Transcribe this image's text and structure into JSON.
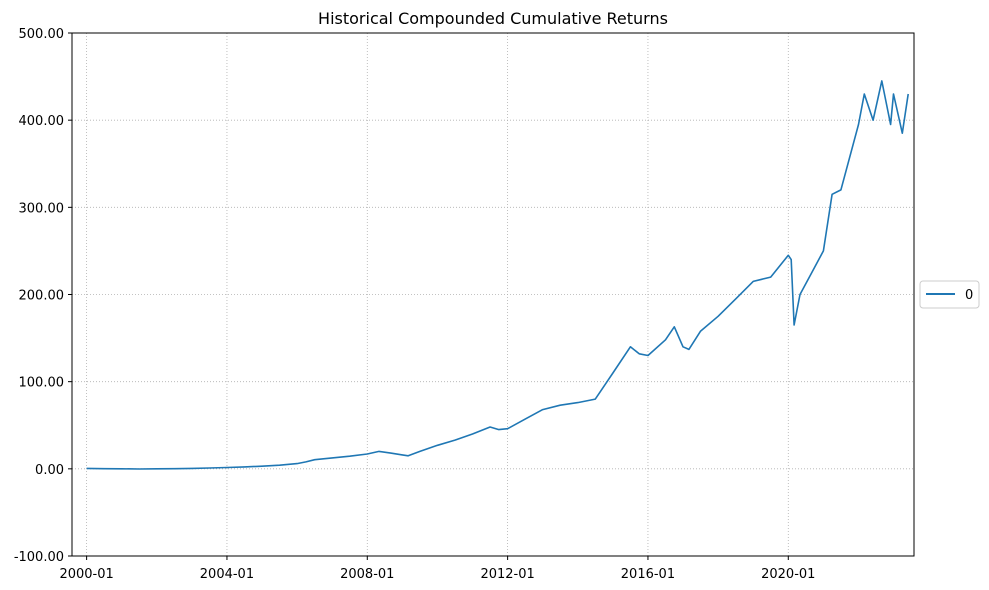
{
  "chart_data": {
    "type": "line",
    "title": "Historical Compounded Cumulative Returns",
    "xlabel": "",
    "ylabel": "",
    "x_axis_type": "date",
    "xlim": [
      "1999-08",
      "2023-08"
    ],
    "ylim": [
      -100,
      500
    ],
    "x_ticks": [
      "2000-01",
      "2004-01",
      "2008-01",
      "2012-01",
      "2016-01",
      "2020-01"
    ],
    "y_ticks": [
      "-100.00",
      "0.00",
      "100.00",
      "200.00",
      "300.00",
      "400.00",
      "500.00"
    ],
    "grid": true,
    "grid_style": "dotted",
    "legend_position": "center-right outside",
    "series": [
      {
        "name": "0",
        "color": "#1f77b4",
        "points": [
          [
            "2000-01",
            0.5
          ],
          [
            "2000-07",
            0.1
          ],
          [
            "2001-01",
            0.0
          ],
          [
            "2001-07",
            -0.2
          ],
          [
            "2002-01",
            0.0
          ],
          [
            "2002-07",
            0.2
          ],
          [
            "2003-01",
            0.5
          ],
          [
            "2003-07",
            0.9
          ],
          [
            "2004-01",
            1.5
          ],
          [
            "2004-07",
            2.2
          ],
          [
            "2005-01",
            3.0
          ],
          [
            "2005-07",
            4.2
          ],
          [
            "2006-01",
            6.0
          ],
          [
            "2006-04",
            8.0
          ],
          [
            "2006-07",
            10.5
          ],
          [
            "2006-10",
            11.5
          ],
          [
            "2007-01",
            12.5
          ],
          [
            "2007-07",
            14.5
          ],
          [
            "2008-01",
            17.0
          ],
          [
            "2008-05",
            20.0
          ],
          [
            "2008-09",
            18.0
          ],
          [
            "2009-01",
            16.0
          ],
          [
            "2009-03",
            15.0
          ],
          [
            "2009-07",
            20.0
          ],
          [
            "2010-01",
            27.0
          ],
          [
            "2010-07",
            33.0
          ],
          [
            "2011-01",
            40.0
          ],
          [
            "2011-07",
            48.0
          ],
          [
            "2011-10",
            45.0
          ],
          [
            "2012-01",
            46.0
          ],
          [
            "2012-07",
            57.0
          ],
          [
            "2013-01",
            68.0
          ],
          [
            "2013-07",
            73.0
          ],
          [
            "2014-01",
            76.0
          ],
          [
            "2014-07",
            80.0
          ],
          [
            "2015-01",
            110.0
          ],
          [
            "2015-07",
            140.0
          ],
          [
            "2015-10",
            132.0
          ],
          [
            "2016-01",
            130.0
          ],
          [
            "2016-07",
            148.0
          ],
          [
            "2016-10",
            163.0
          ],
          [
            "2017-01",
            140.0
          ],
          [
            "2017-03",
            137.0
          ],
          [
            "2017-07",
            158.0
          ],
          [
            "2018-01",
            175.0
          ],
          [
            "2018-07",
            195.0
          ],
          [
            "2019-01",
            215.0
          ],
          [
            "2019-07",
            220.0
          ],
          [
            "2020-01",
            245.0
          ],
          [
            "2020-02",
            240.0
          ],
          [
            "2020-03",
            165.0
          ],
          [
            "2020-05",
            200.0
          ],
          [
            "2020-09",
            225.0
          ],
          [
            "2021-01",
            250.0
          ],
          [
            "2021-04",
            315.0
          ],
          [
            "2021-07",
            320.0
          ],
          [
            "2022-01",
            395.0
          ],
          [
            "2022-03",
            430.0
          ],
          [
            "2022-06",
            400.0
          ],
          [
            "2022-09",
            445.0
          ],
          [
            "2022-12",
            395.0
          ],
          [
            "2023-01",
            430.0
          ],
          [
            "2023-03",
            400.0
          ],
          [
            "2023-04",
            385.0
          ],
          [
            "2023-06",
            430.0
          ]
        ]
      }
    ]
  }
}
